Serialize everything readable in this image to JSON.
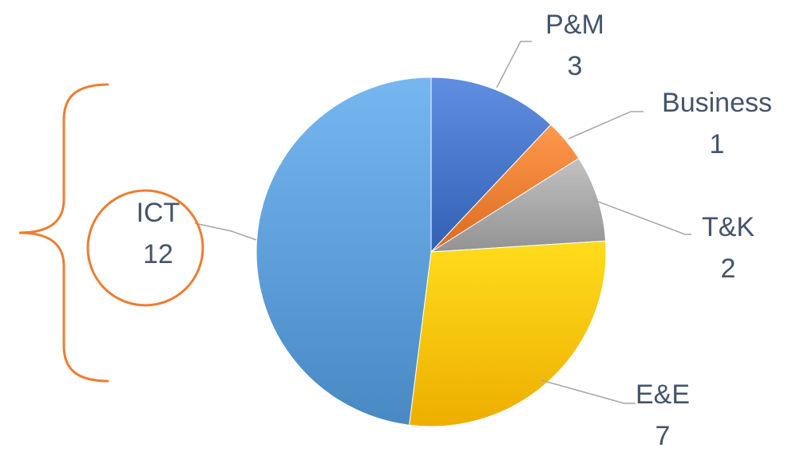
{
  "chart_data": {
    "type": "pie",
    "title": "",
    "slices": [
      {
        "label": "P&M",
        "value": 3,
        "color": "#4472c4"
      },
      {
        "label": "Business",
        "value": 1,
        "color": "#ed7d31"
      },
      {
        "label": "T&K",
        "value": 2,
        "color": "#a5a5a5"
      },
      {
        "label": "E&E",
        "value": 7,
        "color": "#ffc000"
      },
      {
        "label": "ICT",
        "value": 12,
        "color": "#5b9bd5"
      }
    ],
    "start": "12 o'clock",
    "direction": "clockwise",
    "legend": "none",
    "data_labels": "category name and value, outside with leader lines"
  },
  "annotation": {
    "type": "orange circle around the ICT label and a curly brace to its left",
    "color": "#ed7d31"
  }
}
